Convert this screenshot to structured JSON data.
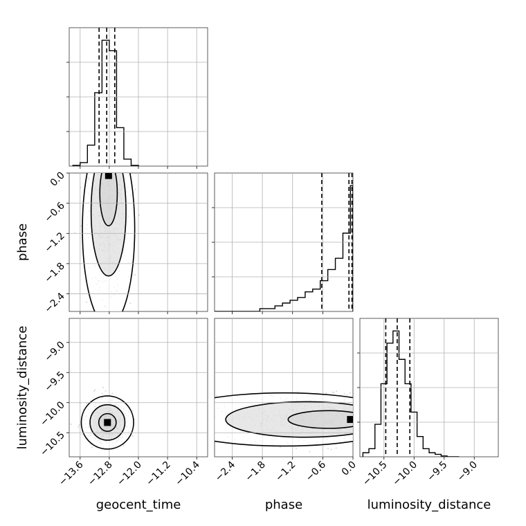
{
  "chart_data": {
    "type": "corner",
    "params": [
      "geocent_time",
      "phase",
      "luminosity_distance"
    ],
    "axis_labels": {
      "geocent_time": "geocent_time",
      "phase": "phase",
      "luminosity_distance": "luminosity_distance"
    },
    "ranges": {
      "geocent_time": [
        -13.9,
        -10.1
      ],
      "phase": [
        -2.75,
        0.0
      ],
      "luminosity_distance": [
        -10.9,
        -8.6
      ]
    },
    "ticks": {
      "geocent_time": [
        -13.6,
        -12.8,
        -12.0,
        -11.2,
        -10.4
      ],
      "phase": [
        -2.4,
        -1.8,
        -1.2,
        -0.6,
        0.0
      ],
      "luminosity_distance": [
        -10.5,
        -10.0,
        -9.5,
        -9.0
      ]
    },
    "tick_labels": {
      "geocent_time": [
        "−13.6",
        "−12.8",
        "−12.0",
        "−11.2",
        "−10.4"
      ],
      "phase": [
        "−2.4",
        "−1.8",
        "−1.2",
        "−0.6",
        "0.0"
      ],
      "luminosity_distance": [
        "−10.5",
        "−10.0",
        "−9.5",
        "−9.0"
      ]
    },
    "quantiles": {
      "geocent_time": [
        -13.08,
        -12.87,
        -12.65
      ],
      "phase": [
        -0.62,
        -0.08,
        -0.02
      ],
      "luminosity_distance": [
        -10.47,
        -10.28,
        -10.07
      ]
    },
    "histograms": {
      "geocent_time": {
        "edges": [
          -13.8,
          -13.6,
          -13.4,
          -13.2,
          -13.0,
          -12.8,
          -12.6,
          -12.4,
          -12.2,
          -12.0
        ],
        "counts": [
          1,
          5,
          30,
          105,
          180,
          165,
          55,
          10,
          1
        ]
      },
      "phase": {
        "edges": [
          -2.75,
          -2.6,
          -2.45,
          -2.3,
          -2.15,
          -2.0,
          -1.85,
          -1.7,
          -1.55,
          -1.4,
          -1.25,
          -1.1,
          -0.95,
          -0.8,
          -0.65,
          -0.5,
          -0.35,
          -0.2,
          -0.05,
          0.0
        ],
        "counts": [
          0,
          0,
          0,
          0,
          0,
          0,
          1,
          1,
          2,
          3,
          4,
          5,
          7,
          8,
          11,
          15,
          19,
          28,
          45
        ]
      },
      "luminosity_distance": {
        "edges": [
          -10.85,
          -10.75,
          -10.65,
          -10.55,
          -10.45,
          -10.35,
          -10.25,
          -10.15,
          -10.05,
          -9.95,
          -9.85,
          -9.75,
          -9.65,
          -9.55,
          -9.45,
          -9.35,
          -9.25
        ],
        "counts": [
          5,
          10,
          40,
          90,
          140,
          155,
          120,
          90,
          55,
          25,
          10,
          5,
          3,
          1,
          0,
          0
        ]
      }
    },
    "joint_peaks": [
      {
        "x": "geocent_time",
        "y": "phase",
        "center": [
          -12.82,
          -0.05
        ]
      },
      {
        "x": "geocent_time",
        "y": "luminosity_distance",
        "center": [
          -12.85,
          -10.33
        ]
      },
      {
        "x": "phase",
        "y": "luminosity_distance",
        "center": [
          -0.05,
          -10.28
        ]
      }
    ],
    "grid": true,
    "quantile_line_style": "dashed",
    "colors": {
      "line": "#000000",
      "points": "#888888",
      "grid": "#b0b0b0"
    }
  }
}
